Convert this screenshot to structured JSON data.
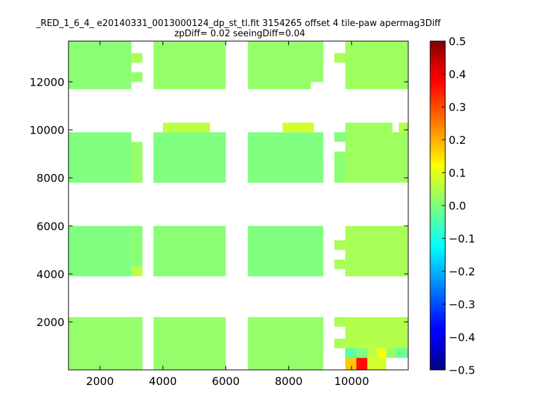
{
  "chart_data": {
    "type": "heatmap",
    "title_line1": "_RED_1_6_4_ e20140331_0013000124_dp_st_tl.fit 3154265 offset 4 tile-paw apermag3Diff",
    "title_line2": "zpDiff= 0.02 seeingDiff=0.04",
    "xlim": [
      1000,
      11800
    ],
    "ylim": [
      0,
      13700
    ],
    "x_ticks": [
      2000,
      4000,
      6000,
      8000,
      10000
    ],
    "y_ticks": [
      2000,
      4000,
      6000,
      8000,
      10000,
      12000
    ],
    "colorbar": {
      "colormap": "jet",
      "range": [
        -0.5,
        0.5
      ],
      "ticks": [
        0.5,
        0.4,
        0.3,
        0.2,
        0.1,
        0.0,
        -0.1,
        -0.2,
        -0.3,
        -0.4,
        -0.5
      ],
      "tick_labels": [
        "0.5",
        "0.4",
        "0.3",
        "0.2",
        "0.1",
        "0.0",
        "−0.1",
        "−0.2",
        "−0.3",
        "−0.4",
        "−0.5"
      ]
    },
    "column_blocks_x": [
      [
        1000,
        3000
      ],
      [
        3000,
        3350
      ],
      [
        3700,
        6000
      ],
      [
        6700,
        9100
      ],
      [
        9450,
        9800
      ],
      [
        9800,
        11800
      ]
    ],
    "row_blocks_y": [
      [
        11700,
        13700
      ],
      [
        7800,
        10300
      ],
      [
        3900,
        6000
      ],
      [
        0,
        2200
      ]
    ],
    "base_value": 0.01,
    "cell_values": [
      {
        "x": [
          1000,
          3000
        ],
        "y": [
          11700,
          13700
        ],
        "value": 0.01
      },
      {
        "x": [
          3000,
          3350
        ],
        "y": [
          12800,
          13200
        ],
        "value": 0.04
      },
      {
        "x": [
          3000,
          3350
        ],
        "y": [
          12000,
          12400
        ],
        "value": 0.02
      },
      {
        "x": [
          3700,
          6000
        ],
        "y": [
          11700,
          13700
        ],
        "value": 0.02
      },
      {
        "x": [
          6700,
          9100
        ],
        "y": [
          12000,
          13700
        ],
        "value": 0.02
      },
      {
        "x": [
          6700,
          8700
        ],
        "y": [
          11700,
          12000
        ],
        "value": 0.02
      },
      {
        "x": [
          9450,
          9800
        ],
        "y": [
          12800,
          13200
        ],
        "value": 0.04
      },
      {
        "x": [
          9800,
          11800
        ],
        "y": [
          11700,
          13700
        ],
        "value": 0.03
      },
      {
        "x": [
          1000,
          3000
        ],
        "y": [
          7800,
          9900
        ],
        "value": 0.0
      },
      {
        "x": [
          3000,
          3350
        ],
        "y": [
          7800,
          9500
        ],
        "value": 0.02
      },
      {
        "x": [
          3700,
          6000
        ],
        "y": [
          7800,
          9900
        ],
        "value": 0.0
      },
      {
        "x": [
          4000,
          5500
        ],
        "y": [
          9900,
          10300
        ],
        "value": 0.06
      },
      {
        "x": [
          6700,
          9100
        ],
        "y": [
          7800,
          9900
        ],
        "value": 0.0
      },
      {
        "x": [
          7800,
          8800
        ],
        "y": [
          9900,
          10300
        ],
        "value": 0.08
      },
      {
        "x": [
          9450,
          9800
        ],
        "y": [
          9500,
          9900
        ],
        "value": 0.0
      },
      {
        "x": [
          9450,
          9800
        ],
        "y": [
          7800,
          9100
        ],
        "value": 0.01
      },
      {
        "x": [
          9800,
          11300
        ],
        "y": [
          7800,
          10300
        ],
        "value": 0.03
      },
      {
        "x": [
          11300,
          11800
        ],
        "y": [
          7800,
          9900
        ],
        "value": 0.03
      },
      {
        "x": [
          11500,
          11800
        ],
        "y": [
          9900,
          10300
        ],
        "value": 0.05
      },
      {
        "x": [
          1000,
          3000
        ],
        "y": [
          3900,
          6000
        ],
        "value": 0.0
      },
      {
        "x": [
          3000,
          3350
        ],
        "y": [
          3900,
          4300
        ],
        "value": 0.06
      },
      {
        "x": [
          3000,
          3350
        ],
        "y": [
          4300,
          6000
        ],
        "value": 0.01
      },
      {
        "x": [
          3700,
          6000
        ],
        "y": [
          3900,
          6000
        ],
        "value": 0.01
      },
      {
        "x": [
          6700,
          9100
        ],
        "y": [
          3900,
          6000
        ],
        "value": 0.0
      },
      {
        "x": [
          9450,
          9800
        ],
        "y": [
          5000,
          5400
        ],
        "value": 0.04
      },
      {
        "x": [
          9450,
          9800
        ],
        "y": [
          4200,
          4600
        ],
        "value": 0.04
      },
      {
        "x": [
          9800,
          11800
        ],
        "y": [
          3900,
          6000
        ],
        "value": 0.04
      },
      {
        "x": [
          1000,
          3000
        ],
        "y": [
          0,
          2200
        ],
        "value": 0.02
      },
      {
        "x": [
          3000,
          3350
        ],
        "y": [
          0,
          2200
        ],
        "value": 0.02
      },
      {
        "x": [
          3700,
          6000
        ],
        "y": [
          0,
          2200
        ],
        "value": 0.02
      },
      {
        "x": [
          6700,
          9100
        ],
        "y": [
          0,
          2200
        ],
        "value": 0.02
      },
      {
        "x": [
          9450,
          9800
        ],
        "y": [
          1800,
          2200
        ],
        "value": 0.04
      },
      {
        "x": [
          9450,
          9800
        ],
        "y": [
          900,
          1300
        ],
        "value": 0.04
      },
      {
        "x": [
          9800,
          11800
        ],
        "y": [
          500,
          2200
        ],
        "value": 0.05
      },
      {
        "x": [
          9800,
          10150
        ],
        "y": [
          0,
          500
        ],
        "value": 0.18
      },
      {
        "x": [
          10150,
          10500
        ],
        "y": [
          0,
          500
        ],
        "value": 0.36
      },
      {
        "x": [
          9800,
          10150
        ],
        "y": [
          500,
          900
        ],
        "value": -0.04
      },
      {
        "x": [
          10150,
          10500
        ],
        "y": [
          500,
          900
        ],
        "value": 0.0
      },
      {
        "x": [
          10500,
          11100
        ],
        "y": [
          500,
          900
        ],
        "value": 0.06
      },
      {
        "x": [
          10800,
          11100
        ],
        "y": [
          500,
          900
        ],
        "value": 0.12
      },
      {
        "x": [
          10500,
          11100
        ],
        "y": [
          0,
          500
        ],
        "value": 0.08
      },
      {
        "x": [
          11100,
          11400
        ],
        "y": [
          500,
          900
        ],
        "value": 0.02
      },
      {
        "x": [
          11400,
          11800
        ],
        "y": [
          500,
          900
        ],
        "value": -0.02
      }
    ]
  }
}
